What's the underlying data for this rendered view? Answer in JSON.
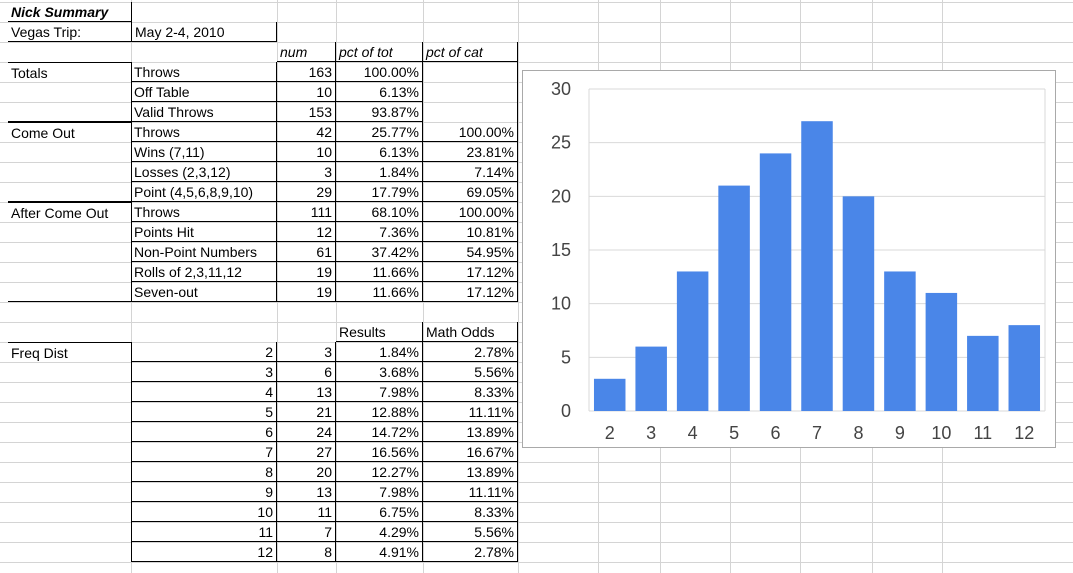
{
  "title": "Nick Summary",
  "trip": {
    "label": "Vegas Trip:",
    "date": "May 2-4, 2010"
  },
  "headers": {
    "num": "num",
    "pct_tot": "pct of tot",
    "pct_cat": "pct of cat"
  },
  "rows": [
    {
      "group": "Totals",
      "label": "Throws",
      "num": "163",
      "pct_tot": "100.00%",
      "pct_cat": ""
    },
    {
      "group": "",
      "label": "Off Table",
      "num": "10",
      "pct_tot": "6.13%",
      "pct_cat": ""
    },
    {
      "group": "",
      "label": "Valid Throws",
      "num": "153",
      "pct_tot": "93.87%",
      "pct_cat": ""
    },
    {
      "group": "Come Out",
      "label": "Throws",
      "num": "42",
      "pct_tot": "25.77%",
      "pct_cat": "100.00%"
    },
    {
      "group": "",
      "label": "Wins (7,11)",
      "num": "10",
      "pct_tot": "6.13%",
      "pct_cat": "23.81%"
    },
    {
      "group": "",
      "label": "Losses (2,3,12)",
      "num": "3",
      "pct_tot": "1.84%",
      "pct_cat": "7.14%"
    },
    {
      "group": "",
      "label": "Point (4,5,6,8,9,10)",
      "num": "29",
      "pct_tot": "17.79%",
      "pct_cat": "69.05%"
    },
    {
      "group": "After Come Out",
      "label": "Throws",
      "num": "111",
      "pct_tot": "68.10%",
      "pct_cat": "100.00%"
    },
    {
      "group": "",
      "label": "Points Hit",
      "num": "12",
      "pct_tot": "7.36%",
      "pct_cat": "10.81%"
    },
    {
      "group": "",
      "label": "Non-Point Numbers",
      "num": "61",
      "pct_tot": "37.42%",
      "pct_cat": "54.95%"
    },
    {
      "group": "",
      "label": "Rolls of 2,3,11,12",
      "num": "19",
      "pct_tot": "11.66%",
      "pct_cat": "17.12%"
    },
    {
      "group": "",
      "label": "Seven-out",
      "num": "19",
      "pct_tot": "11.66%",
      "pct_cat": "17.12%"
    }
  ],
  "freq": {
    "label": "Freq Dist",
    "headers": {
      "results": "Results",
      "odds": "Math Odds"
    },
    "rows": [
      {
        "roll": "2",
        "count": "3",
        "results": "1.84%",
        "odds": "2.78%"
      },
      {
        "roll": "3",
        "count": "6",
        "results": "3.68%",
        "odds": "5.56%"
      },
      {
        "roll": "4",
        "count": "13",
        "results": "7.98%",
        "odds": "8.33%"
      },
      {
        "roll": "5",
        "count": "21",
        "results": "12.88%",
        "odds": "11.11%"
      },
      {
        "roll": "6",
        "count": "24",
        "results": "14.72%",
        "odds": "13.89%"
      },
      {
        "roll": "7",
        "count": "27",
        "results": "16.56%",
        "odds": "16.67%"
      },
      {
        "roll": "8",
        "count": "20",
        "results": "12.27%",
        "odds": "13.89%"
      },
      {
        "roll": "9",
        "count": "13",
        "results": "7.98%",
        "odds": "11.11%"
      },
      {
        "roll": "10",
        "count": "11",
        "results": "6.75%",
        "odds": "8.33%"
      },
      {
        "roll": "11",
        "count": "7",
        "results": "4.29%",
        "odds": "5.56%"
      },
      {
        "roll": "12",
        "count": "8",
        "results": "4.91%",
        "odds": "2.78%"
      }
    ]
  },
  "chart_data": {
    "type": "bar",
    "categories": [
      "2",
      "3",
      "4",
      "5",
      "6",
      "7",
      "8",
      "9",
      "10",
      "11",
      "12"
    ],
    "values": [
      3,
      6,
      13,
      21,
      24,
      27,
      20,
      13,
      11,
      7,
      8
    ],
    "title": "",
    "xlabel": "",
    "ylabel": "",
    "ylim": [
      0,
      30
    ],
    "yticks": [
      0,
      5,
      10,
      15,
      20,
      25,
      30
    ],
    "grid": true,
    "legend": "none",
    "bar_color": "#4a86e8"
  }
}
